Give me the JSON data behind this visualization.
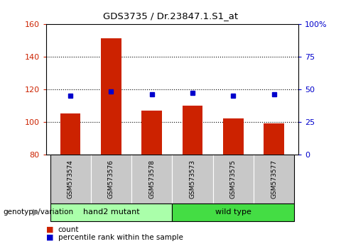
{
  "title": "GDS3735 / Dr.23847.1.S1_at",
  "samples": [
    "GSM573574",
    "GSM573576",
    "GSM573578",
    "GSM573573",
    "GSM573575",
    "GSM573577"
  ],
  "counts": [
    105,
    151,
    107,
    110,
    102,
    99
  ],
  "percentile_ranks": [
    45,
    48,
    46,
    47,
    45,
    46
  ],
  "ylim_left": [
    80,
    160
  ],
  "ylim_right": [
    0,
    100
  ],
  "yticks_left": [
    80,
    100,
    120,
    140,
    160
  ],
  "yticks_right": [
    0,
    25,
    50,
    75,
    100
  ],
  "yticklabels_right": [
    "0",
    "25",
    "50",
    "75",
    "100%"
  ],
  "bar_color": "#cc2200",
  "dot_color": "#0000cc",
  "grid_lines": [
    100,
    120,
    140
  ],
  "groups": [
    {
      "label": "hand2 mutant",
      "indices": [
        0,
        1,
        2
      ],
      "color": "#aaffaa"
    },
    {
      "label": "wild type",
      "indices": [
        3,
        4,
        5
      ],
      "color": "#44dd44"
    }
  ],
  "group_label": "genotype/variation",
  "legend_items": [
    {
      "label": "count",
      "color": "#cc2200"
    },
    {
      "label": "percentile rank within the sample",
      "color": "#0000cc"
    }
  ],
  "background_color": "#ffffff",
  "plot_bg_color": "#ffffff",
  "tick_area_color": "#c8c8c8"
}
